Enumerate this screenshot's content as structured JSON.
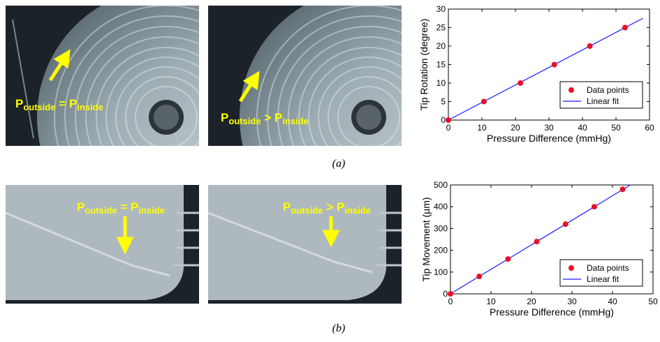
{
  "figure": {
    "captions": [
      "(a)",
      "(b)"
    ],
    "photos_a": [
      {
        "p_out": "P",
        "sub_out": "outside",
        "op": "=",
        "p_in": "P",
        "sub_in": "inside"
      },
      {
        "p_out": "P",
        "sub_out": "outside",
        "op": ">",
        "p_in": "P",
        "sub_in": "inside"
      }
    ],
    "photos_b": [
      {
        "p_out": "P",
        "sub_out": "outside",
        "op": "=",
        "p_in": "P",
        "sub_in": "inside"
      },
      {
        "p_out": "P",
        "sub_out": "outside",
        "op": ">",
        "p_in": "P",
        "sub_in": "inside"
      }
    ],
    "colors": {
      "annotation": "#ffff00",
      "points": "#e8102a",
      "fit": "#1a1aff"
    }
  },
  "chart_data": [
    {
      "type": "scatter",
      "xlabel": "Pressure Difference (mmHg)",
      "ylabel": "Tip Rotation (degree)",
      "xlim": [
        0,
        60
      ],
      "ylim": [
        0,
        30
      ],
      "xticks": [
        "0",
        "10",
        "20",
        "30",
        "40",
        "50",
        "60"
      ],
      "yticks": [
        "0",
        "5",
        "10",
        "15",
        "20",
        "25",
        "30"
      ],
      "series": [
        {
          "name": "Data points",
          "kind": "markers",
          "x": [
            0,
            10.6,
            21.5,
            31.6,
            42.2,
            52.7
          ],
          "y": [
            0,
            5,
            10,
            15,
            20,
            25
          ]
        },
        {
          "name": "Linear fit",
          "kind": "line",
          "x": [
            0,
            58
          ],
          "y": [
            0,
            27.5
          ]
        }
      ],
      "legend": "right-center",
      "grid": false
    },
    {
      "type": "scatter",
      "xlabel": "Pressure Difference (mmHg)",
      "ylabel": "Tip Movement (µm)",
      "xlim": [
        0,
        50
      ],
      "ylim": [
        0,
        500
      ],
      "xticks": [
        "0",
        "10",
        "20",
        "30",
        "40",
        "50"
      ],
      "yticks": [
        "0",
        "100",
        "200",
        "300",
        "400",
        "500"
      ],
      "series": [
        {
          "name": "Data points",
          "kind": "markers",
          "x": [
            0,
            7.1,
            14.2,
            21.3,
            28.4,
            35.5,
            42.5
          ],
          "y": [
            0,
            80,
            160,
            240,
            320,
            400,
            480
          ]
        },
        {
          "name": "Linear fit",
          "kind": "line",
          "x": [
            0,
            44.4
          ],
          "y": [
            0,
            500
          ]
        }
      ],
      "legend": "bottom-right",
      "grid": false
    }
  ]
}
